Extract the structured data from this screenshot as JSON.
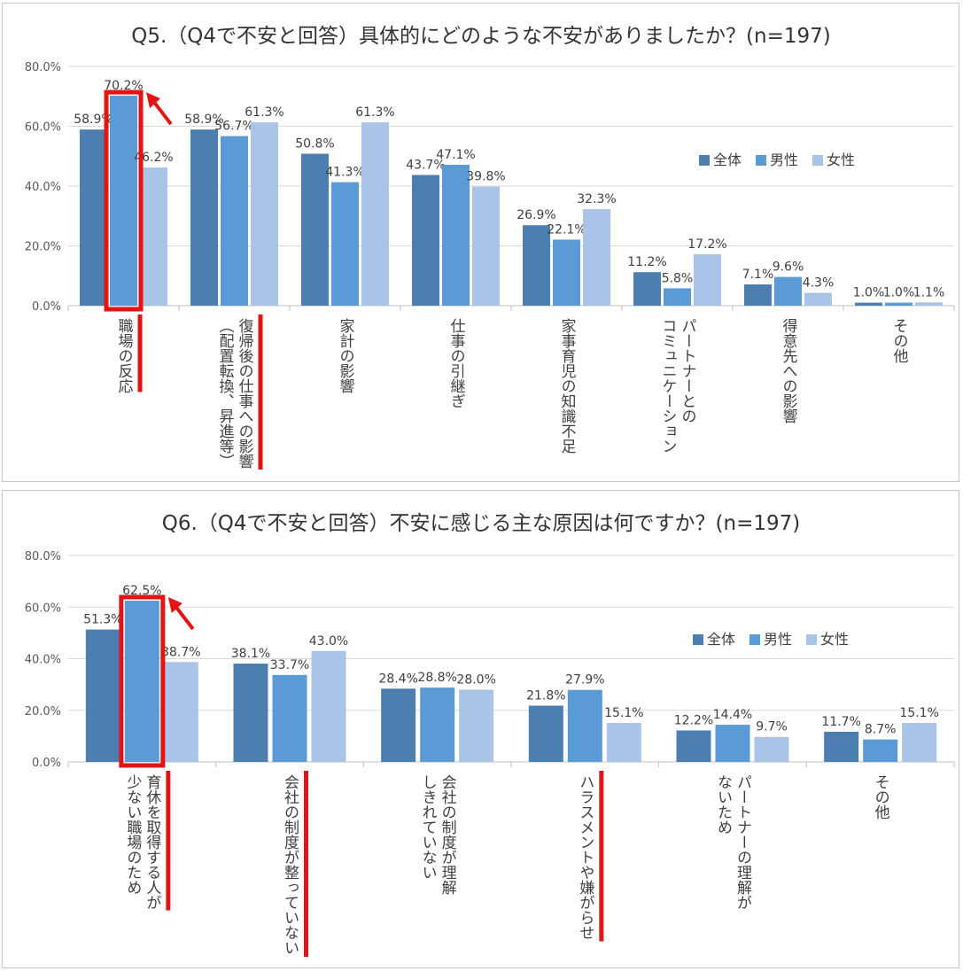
{
  "colors": {
    "series": [
      "#4d7eb0",
      "#5b9bd5",
      "#a9c4e6"
    ],
    "highlight": "#e41414",
    "grid": "#d9d9d9",
    "axis": "#bfbfbf"
  },
  "chart_data": [
    {
      "type": "bar",
      "title": "Q5.（Q4で不安と回答）具体的にどのような不安がありましたか？(n=197)",
      "categories": [
        [
          "職場の反応"
        ],
        [
          "復帰後の仕事への影響",
          "（配置転換、昇進等）"
        ],
        [
          "家計の影響"
        ],
        [
          "仕事の引継ぎ"
        ],
        [
          "家事育児の知識不足"
        ],
        [
          "パートナーとの",
          "コミュニケーション"
        ],
        [
          "得意先への影響"
        ],
        [
          "その他"
        ]
      ],
      "series": [
        {
          "name": "全体",
          "values": [
            58.9,
            58.9,
            50.8,
            43.7,
            26.9,
            11.2,
            7.1,
            1.0
          ]
        },
        {
          "name": "男性",
          "values": [
            70.2,
            56.7,
            41.3,
            47.1,
            22.1,
            5.8,
            9.6,
            1.0
          ]
        },
        {
          "name": "女性",
          "values": [
            46.2,
            61.3,
            61.3,
            39.8,
            32.3,
            17.2,
            4.3,
            1.1
          ]
        }
      ],
      "value_labels": [
        [
          "58.9%",
          "58.9%",
          "50.8%",
          "43.7%",
          "26.9%",
          "11.2%",
          "7.1%",
          "1.0%"
        ],
        [
          "70.2%",
          "56.7%",
          "41.3%",
          "47.1%",
          "22.1%",
          "5.8%",
          "9.6%",
          "1.0%"
        ],
        [
          "46.2%",
          "61.3%",
          "61.3%",
          "39.8%",
          "32.3%",
          "17.2%",
          "4.3%",
          "1.1%"
        ]
      ],
      "yticks": [
        "0.0%",
        "20.0%",
        "40.0%",
        "60.0%",
        "80.0%"
      ],
      "ylim": [
        0,
        80
      ],
      "grid": true,
      "legend_position": "right",
      "highlights": {
        "bar": [
          0,
          1
        ],
        "category_underlines": [
          0,
          1
        ]
      }
    },
    {
      "type": "bar",
      "title": "Q6.（Q4で不安と回答）不安に感じる主な原因は何ですか？(n=197)",
      "categories": [
        [
          "育休を取得する人が",
          "少ない職場のため"
        ],
        [
          "会社の制度が整っていない"
        ],
        [
          "会社の制度が理解",
          "しきれていない"
        ],
        [
          "ハラスメントや嫌がらせ"
        ],
        [
          "パートナーの理解が",
          "ないため"
        ],
        [
          "その他"
        ]
      ],
      "series": [
        {
          "name": "全体",
          "values": [
            51.3,
            38.1,
            28.4,
            21.8,
            12.2,
            11.7
          ]
        },
        {
          "name": "男性",
          "values": [
            62.5,
            33.7,
            28.8,
            27.9,
            14.4,
            8.7
          ]
        },
        {
          "name": "女性",
          "values": [
            38.7,
            43.0,
            28.0,
            15.1,
            9.7,
            15.1
          ]
        }
      ],
      "value_labels": [
        [
          "51.3%",
          "38.1%",
          "28.4%",
          "21.8%",
          "12.2%",
          "11.7%"
        ],
        [
          "62.5%",
          "33.7%",
          "28.8%",
          "27.9%",
          "14.4%",
          "8.7%"
        ],
        [
          "38.7%",
          "43.0%",
          "28.0%",
          "15.1%",
          "9.7%",
          "15.1%"
        ]
      ],
      "yticks": [
        "0.0%",
        "20.0%",
        "40.0%",
        "60.0%",
        "80.0%"
      ],
      "ylim": [
        0,
        80
      ],
      "grid": true,
      "legend_position": "right",
      "highlights": {
        "bar": [
          0,
          1
        ],
        "category_underlines": [
          0,
          1,
          3
        ]
      }
    }
  ]
}
